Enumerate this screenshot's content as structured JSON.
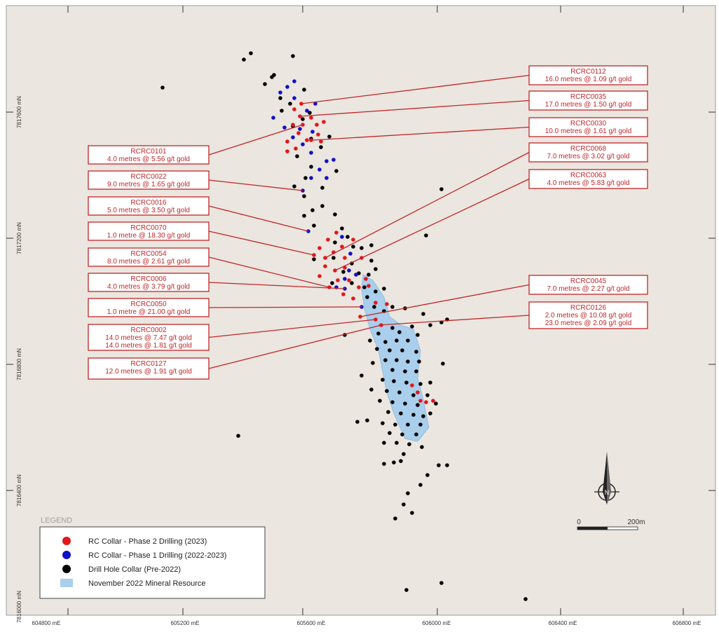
{
  "axes": {
    "x_ticks": [
      "604800 mE",
      "605200 mE",
      "605600 mE",
      "606000 mE",
      "606400 mE",
      "606800 mE"
    ],
    "y_ticks": [
      "7817600 mN",
      "7817200 mN",
      "7816800 mN",
      "7816400 mN",
      "7816000 mN"
    ]
  },
  "legend": {
    "title": "LEGEND",
    "items": [
      {
        "label": "RC Collar - Phase 2 Drilling (2023)",
        "color": "#e3161c",
        "symbol": "dot"
      },
      {
        "label": "RC Collar - Phase 1 Drilling (2022-2023)",
        "color": "#1010c8",
        "symbol": "dot"
      },
      {
        "label": "Drill Hole Collar (Pre-2022)",
        "color": "#000000",
        "symbol": "dot"
      },
      {
        "label": "November 2022 Mineral Resource",
        "color": "#a9cfec",
        "symbol": "rect"
      }
    ]
  },
  "scale_bar": {
    "start": "0",
    "end": "200m"
  },
  "north_arrow": "north-arrow-icon",
  "colors": {
    "background": "#ebe6df",
    "accent": "#c0262a",
    "resource": "#a9cfec"
  },
  "callouts_left": [
    {
      "id": "RCRC0101",
      "lines": [
        "4.0 metres @ 5.56 g/t gold"
      ]
    },
    {
      "id": "RCRC0022",
      "lines": [
        "9.0 metres @ 1.65 g/t gold"
      ]
    },
    {
      "id": "RCRC0016",
      "lines": [
        "5.0 metres @ 3.50 g/t gold"
      ]
    },
    {
      "id": "RCRC0070",
      "lines": [
        "1.0 metre @ 18.30 g/t gold"
      ]
    },
    {
      "id": "RCRC0054",
      "lines": [
        "8.0 metres @ 2.61 g/t gold"
      ]
    },
    {
      "id": "RCRC0006",
      "lines": [
        "4.0 metres @ 3.79 g/t gold"
      ]
    },
    {
      "id": "RCRC0050",
      "lines": [
        "1.0 metre @ 21.00 g/t gold"
      ]
    },
    {
      "id": "RCRC0002",
      "lines": [
        "14.0 metres @ 7.47 g/t gold",
        "14.0 metres @ 1.81 g/t gold"
      ]
    },
    {
      "id": "RCRC0127",
      "lines": [
        "12.0 metres @ 1.91 g/t gold"
      ]
    }
  ],
  "callouts_right": [
    {
      "id": "RCRC0112",
      "lines": [
        "16.0 metres @ 1.09 g/t gold"
      ]
    },
    {
      "id": "RCRC0035",
      "lines": [
        "17.0 metres @ 1.50 g/t gold"
      ]
    },
    {
      "id": "RCRC0030",
      "lines": [
        "10.0 metres @ 1.61 g/t gold"
      ]
    },
    {
      "id": "RCRC0068",
      "lines": [
        "7.0 metres @ 3.02 g/t gold"
      ]
    },
    {
      "id": "RCRC0063",
      "lines": [
        "4.0 metres @ 5.83 g/t gold"
      ]
    },
    {
      "id": "RCRC0045",
      "lines": [
        "7.0 metres @ 2.27 g/t gold"
      ]
    },
    {
      "id": "RCRC0126",
      "lines": [
        "2.0 metres @ 10.08 g/t gold",
        "23.0 metres @ 2.09 g/t gold"
      ]
    }
  ]
}
